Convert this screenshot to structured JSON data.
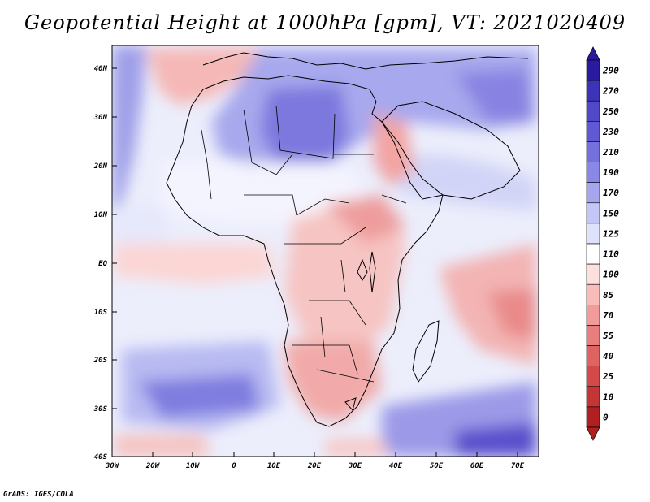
{
  "title": "Geopotential Height at 1000hPa [gpm], VT: 2021020409",
  "credit": "GrADS: IGES/COLA",
  "lat_labels": [
    "40N",
    "30N",
    "20N",
    "10N",
    "EQ",
    "10S",
    "20S",
    "30S",
    "40S"
  ],
  "lon_labels": [
    "30W",
    "20W",
    "10W",
    "0",
    "10E",
    "20E",
    "30E",
    "40E",
    "50E",
    "60E",
    "70E"
  ],
  "legend": {
    "levels": [
      "290",
      "270",
      "250",
      "230",
      "210",
      "190",
      "170",
      "150",
      "125",
      "110",
      "100",
      "85",
      "70",
      "55",
      "40",
      "25",
      "10",
      "0"
    ],
    "colors": [
      "#2a1a9e",
      "#3d33b8",
      "#5048c8",
      "#6058d4",
      "#7470dd",
      "#8a88e6",
      "#a6a6ef",
      "#c3c6f6",
      "#dfe2fb",
      "#ffffff",
      "#fde0de",
      "#f8bcbb",
      "#f19b9a",
      "#e97e7e",
      "#df6363",
      "#d44a4a",
      "#c43535",
      "#b02020"
    ]
  }
}
